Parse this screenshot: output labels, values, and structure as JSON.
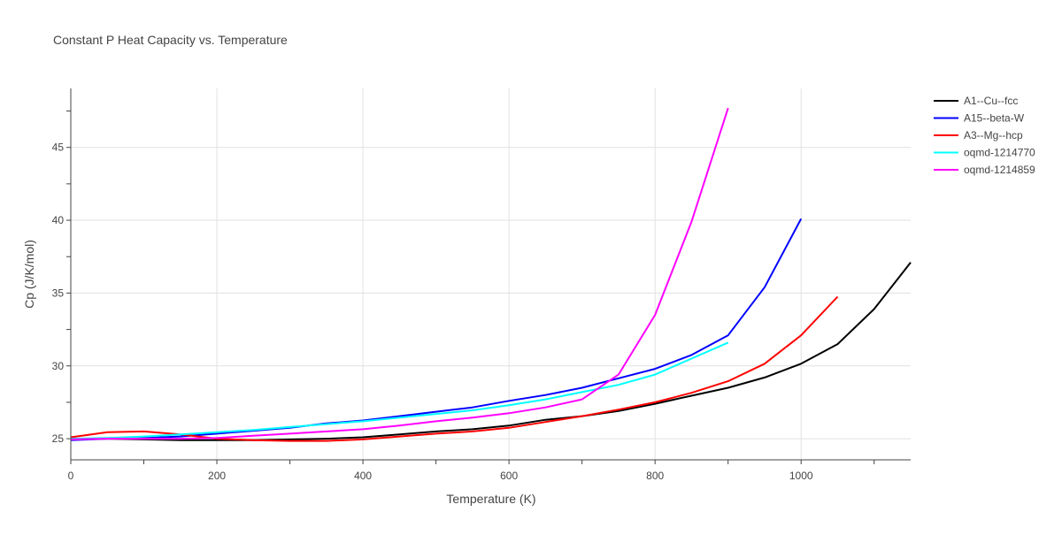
{
  "chart_data": {
    "type": "line",
    "title": "Constant P Heat Capacity vs. Temperature",
    "xlabel": "Temperature (K)",
    "ylabel": "Cp (J/K/mol)",
    "xlim": [
      0,
      1150
    ],
    "ylim": [
      23.55,
      49.05
    ],
    "xticks": [
      0,
      200,
      400,
      600,
      800,
      1000
    ],
    "yticks": [
      25,
      30,
      35,
      40,
      45
    ],
    "grid": true,
    "legend_position": "right",
    "series": [
      {
        "name": "A1--Cu--fcc",
        "color": "#000000",
        "x": [
          0,
          50,
          100,
          150,
          200,
          250,
          300,
          350,
          400,
          450,
          500,
          550,
          600,
          650,
          700,
          750,
          800,
          850,
          900,
          950,
          1000,
          1050,
          1100,
          1150
        ],
        "y": [
          25.0,
          25.0,
          24.95,
          24.9,
          24.9,
          24.9,
          24.95,
          25.0,
          25.1,
          25.3,
          25.5,
          25.65,
          25.9,
          26.3,
          26.55,
          26.9,
          27.4,
          27.95,
          28.5,
          29.2,
          30.15,
          31.5,
          33.9,
          37.1
        ]
      },
      {
        "name": "A15--beta-W",
        "color": "#0000ff",
        "x": [
          0,
          50,
          100,
          150,
          200,
          250,
          300,
          350,
          400,
          450,
          500,
          550,
          600,
          650,
          700,
          750,
          800,
          850,
          900,
          950,
          1000
        ],
        "y": [
          24.9,
          25.0,
          25.05,
          25.15,
          25.35,
          25.55,
          25.75,
          26.05,
          26.25,
          26.55,
          26.85,
          27.15,
          27.6,
          28.0,
          28.5,
          29.15,
          29.8,
          30.75,
          32.1,
          35.4,
          40.1
        ]
      },
      {
        "name": "A3--Mg--hcp",
        "color": "#ff0000",
        "x": [
          0,
          50,
          100,
          150,
          200,
          250,
          300,
          350,
          400,
          450,
          500,
          550,
          600,
          650,
          700,
          750,
          800,
          850,
          900,
          950,
          1000,
          1050
        ],
        "y": [
          25.1,
          25.45,
          25.5,
          25.3,
          25.0,
          24.9,
          24.85,
          24.85,
          24.95,
          25.15,
          25.35,
          25.5,
          25.75,
          26.15,
          26.55,
          27.0,
          27.5,
          28.15,
          28.95,
          30.15,
          32.1,
          34.75
        ]
      },
      {
        "name": "oqmd-1214770",
        "color": "#00ffff",
        "x": [
          0,
          50,
          100,
          150,
          200,
          250,
          300,
          350,
          400,
          450,
          500,
          550,
          600,
          650,
          700,
          750,
          800,
          850,
          900
        ],
        "y": [
          25.0,
          25.05,
          25.15,
          25.3,
          25.45,
          25.6,
          25.8,
          26.0,
          26.2,
          26.45,
          26.7,
          26.95,
          27.3,
          27.7,
          28.2,
          28.7,
          29.4,
          30.5,
          31.6
        ]
      },
      {
        "name": "oqmd-1214859",
        "color": "#ff00ff",
        "x": [
          0,
          50,
          100,
          150,
          200,
          250,
          300,
          350,
          400,
          450,
          500,
          550,
          600,
          650,
          700,
          750,
          800,
          850,
          900
        ],
        "y": [
          24.95,
          25.0,
          25.0,
          25.0,
          25.05,
          25.2,
          25.35,
          25.5,
          25.65,
          25.9,
          26.2,
          26.45,
          26.75,
          27.15,
          27.7,
          29.4,
          33.5,
          39.9,
          47.7
        ]
      }
    ]
  }
}
